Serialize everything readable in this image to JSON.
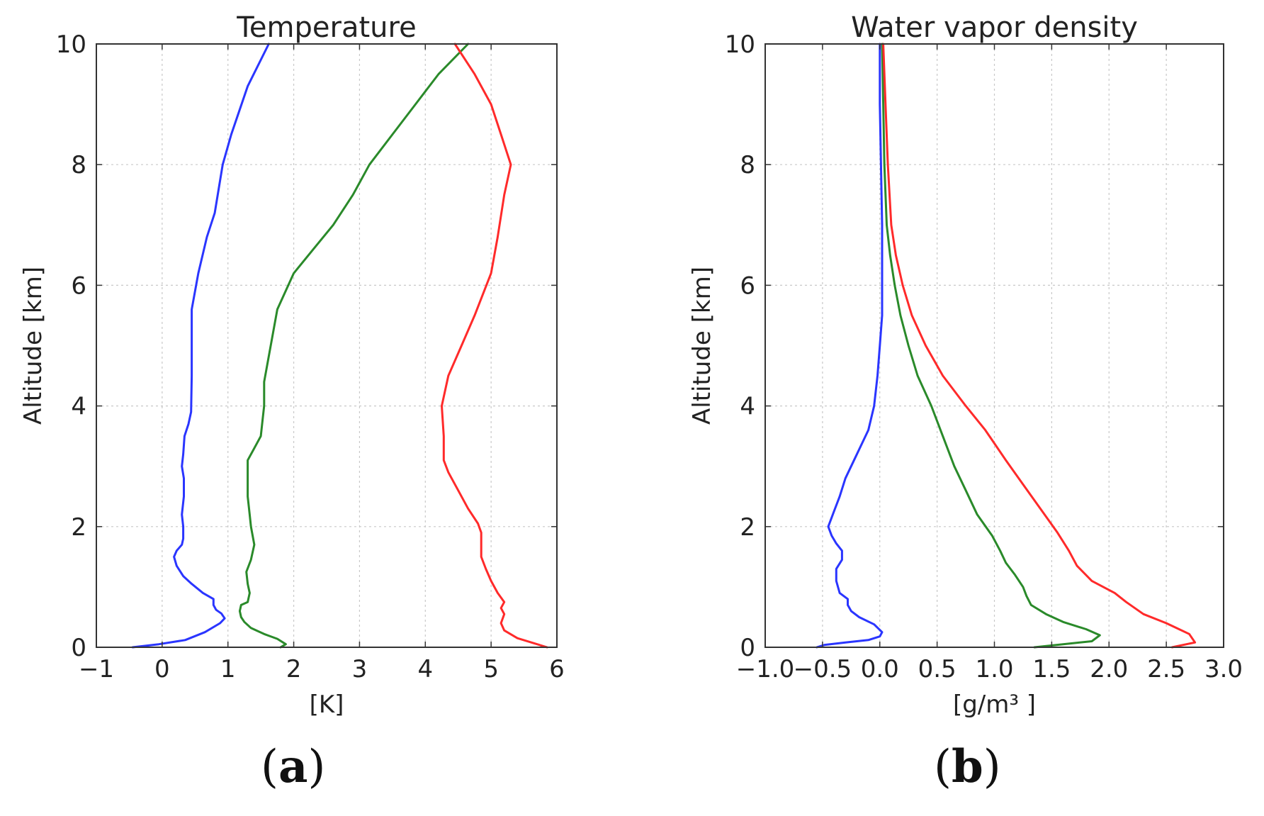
{
  "chart_data": [
    {
      "type": "line",
      "panel_label": "a",
      "title": "Temperature",
      "xlabel": "[K]",
      "ylabel": "Altitude [km]",
      "xlim": [
        -1,
        6
      ],
      "ylim": [
        0,
        10
      ],
      "xticks": [
        -1,
        0,
        1,
        2,
        3,
        4,
        5,
        6
      ],
      "xtick_labels": [
        "−1",
        "0",
        "1",
        "2",
        "3",
        "4",
        "5",
        "6"
      ],
      "yticks": [
        0,
        2,
        4,
        6,
        8,
        10
      ],
      "ytick_labels": [
        "0",
        "2",
        "4",
        "6",
        "8",
        "10"
      ],
      "grid": true,
      "series": [
        {
          "name": "blue",
          "color": "#2a35ff",
          "points": [
            [
              -0.45,
              0
            ],
            [
              -0.05,
              0.05
            ],
            [
              0.35,
              0.12
            ],
            [
              0.65,
              0.25
            ],
            [
              0.88,
              0.4
            ],
            [
              0.95,
              0.48
            ],
            [
              0.9,
              0.56
            ],
            [
              0.82,
              0.62
            ],
            [
              0.78,
              0.7
            ],
            [
              0.78,
              0.8
            ],
            [
              0.62,
              0.9
            ],
            [
              0.45,
              1.05
            ],
            [
              0.32,
              1.18
            ],
            [
              0.22,
              1.35
            ],
            [
              0.18,
              1.5
            ],
            [
              0.22,
              1.6
            ],
            [
              0.3,
              1.7
            ],
            [
              0.32,
              1.8
            ],
            [
              0.32,
              2.0
            ],
            [
              0.3,
              2.2
            ],
            [
              0.33,
              2.5
            ],
            [
              0.33,
              2.8
            ],
            [
              0.3,
              3.0
            ],
            [
              0.32,
              3.2
            ],
            [
              0.34,
              3.5
            ],
            [
              0.4,
              3.7
            ],
            [
              0.44,
              3.9
            ],
            [
              0.45,
              4.5
            ],
            [
              0.45,
              5.6
            ],
            [
              0.55,
              6.2
            ],
            [
              0.68,
              6.8
            ],
            [
              0.8,
              7.2
            ],
            [
              0.86,
              7.6
            ],
            [
              0.92,
              8.0
            ],
            [
              1.05,
              8.5
            ],
            [
              1.3,
              9.3
            ],
            [
              1.62,
              10.0
            ]
          ]
        },
        {
          "name": "green",
          "color": "#2a8a2a",
          "points": [
            [
              1.8,
              0
            ],
            [
              1.88,
              0.05
            ],
            [
              1.75,
              0.14
            ],
            [
              1.55,
              0.22
            ],
            [
              1.35,
              0.32
            ],
            [
              1.25,
              0.42
            ],
            [
              1.2,
              0.5
            ],
            [
              1.18,
              0.6
            ],
            [
              1.2,
              0.7
            ],
            [
              1.3,
              0.75
            ],
            [
              1.33,
              0.9
            ],
            [
              1.3,
              1.05
            ],
            [
              1.28,
              1.25
            ],
            [
              1.35,
              1.45
            ],
            [
              1.4,
              1.7
            ],
            [
              1.35,
              2.0
            ],
            [
              1.33,
              2.2
            ],
            [
              1.3,
              2.5
            ],
            [
              1.3,
              2.8
            ],
            [
              1.3,
              3.1
            ],
            [
              1.4,
              3.3
            ],
            [
              1.5,
              3.5
            ],
            [
              1.53,
              3.8
            ],
            [
              1.55,
              4.0
            ],
            [
              1.55,
              4.4
            ],
            [
              1.65,
              5.0
            ],
            [
              1.75,
              5.6
            ],
            [
              2.0,
              6.2
            ],
            [
              2.3,
              6.6
            ],
            [
              2.6,
              7.0
            ],
            [
              2.9,
              7.5
            ],
            [
              3.15,
              8.0
            ],
            [
              3.5,
              8.5
            ],
            [
              3.85,
              9.0
            ],
            [
              4.2,
              9.5
            ],
            [
              4.65,
              10.0
            ]
          ]
        },
        {
          "name": "red",
          "color": "#ff2a2a",
          "points": [
            [
              5.85,
              0
            ],
            [
              5.7,
              0.05
            ],
            [
              5.4,
              0.15
            ],
            [
              5.2,
              0.28
            ],
            [
              5.15,
              0.4
            ],
            [
              5.2,
              0.55
            ],
            [
              5.15,
              0.65
            ],
            [
              5.2,
              0.75
            ],
            [
              5.1,
              0.9
            ],
            [
              5.0,
              1.1
            ],
            [
              4.92,
              1.3
            ],
            [
              4.85,
              1.5
            ],
            [
              4.85,
              1.9
            ],
            [
              4.8,
              2.05
            ],
            [
              4.65,
              2.3
            ],
            [
              4.5,
              2.6
            ],
            [
              4.35,
              2.9
            ],
            [
              4.28,
              3.1
            ],
            [
              4.28,
              3.5
            ],
            [
              4.25,
              4.0
            ],
            [
              4.35,
              4.5
            ],
            [
              4.55,
              5.0
            ],
            [
              4.75,
              5.5
            ],
            [
              5.0,
              6.2
            ],
            [
              5.1,
              6.8
            ],
            [
              5.2,
              7.5
            ],
            [
              5.3,
              8.0
            ],
            [
              5.15,
              8.5
            ],
            [
              5.0,
              9.0
            ],
            [
              4.75,
              9.5
            ],
            [
              4.45,
              10.0
            ]
          ]
        }
      ]
    },
    {
      "type": "line",
      "panel_label": "b",
      "title": "Water vapor density",
      "xlabel": "[g/m³ ]",
      "ylabel": "Altitude [km]",
      "xlim": [
        -1.0,
        3.0
      ],
      "ylim": [
        0,
        10
      ],
      "xticks": [
        -1.0,
        -0.5,
        0.0,
        0.5,
        1.0,
        1.5,
        2.0,
        2.5,
        3.0
      ],
      "xtick_labels": [
        "−1.0",
        "−0.5",
        "0.0",
        "0.5",
        "1.0",
        "1.5",
        "2.0",
        "2.5",
        "3.0"
      ],
      "yticks": [
        0,
        2,
        4,
        6,
        8,
        10
      ],
      "ytick_labels": [
        "0",
        "2",
        "4",
        "6",
        "8",
        "10"
      ],
      "grid": true,
      "series": [
        {
          "name": "blue",
          "color": "#2a35ff",
          "points": [
            [
              -0.55,
              0
            ],
            [
              -0.48,
              0.04
            ],
            [
              -0.3,
              0.08
            ],
            [
              -0.1,
              0.12
            ],
            [
              0.0,
              0.18
            ],
            [
              0.02,
              0.25
            ],
            [
              -0.05,
              0.38
            ],
            [
              -0.18,
              0.5
            ],
            [
              -0.25,
              0.6
            ],
            [
              -0.28,
              0.7
            ],
            [
              -0.28,
              0.8
            ],
            [
              -0.35,
              0.9
            ],
            [
              -0.38,
              1.1
            ],
            [
              -0.38,
              1.3
            ],
            [
              -0.33,
              1.45
            ],
            [
              -0.33,
              1.6
            ],
            [
              -0.38,
              1.72
            ],
            [
              -0.42,
              1.85
            ],
            [
              -0.45,
              2.0
            ],
            [
              -0.4,
              2.25
            ],
            [
              -0.35,
              2.5
            ],
            [
              -0.3,
              2.8
            ],
            [
              -0.2,
              3.2
            ],
            [
              -0.1,
              3.6
            ],
            [
              -0.05,
              4.0
            ],
            [
              -0.02,
              4.5
            ],
            [
              0.0,
              5.0
            ],
            [
              0.02,
              5.5
            ],
            [
              0.02,
              6.0
            ],
            [
              0.02,
              7.0
            ],
            [
              0.01,
              8.0
            ],
            [
              0.0,
              9.0
            ],
            [
              0.0,
              10.0
            ]
          ]
        },
        {
          "name": "green",
          "color": "#2a8a2a",
          "points": [
            [
              1.35,
              0
            ],
            [
              1.6,
              0.05
            ],
            [
              1.85,
              0.1
            ],
            [
              1.92,
              0.2
            ],
            [
              1.8,
              0.3
            ],
            [
              1.6,
              0.42
            ],
            [
              1.45,
              0.55
            ],
            [
              1.32,
              0.7
            ],
            [
              1.28,
              0.85
            ],
            [
              1.25,
              1.0
            ],
            [
              1.18,
              1.2
            ],
            [
              1.1,
              1.4
            ],
            [
              1.05,
              1.6
            ],
            [
              0.98,
              1.85
            ],
            [
              0.85,
              2.2
            ],
            [
              0.75,
              2.6
            ],
            [
              0.65,
              3.0
            ],
            [
              0.55,
              3.5
            ],
            [
              0.45,
              4.0
            ],
            [
              0.33,
              4.5
            ],
            [
              0.25,
              5.0
            ],
            [
              0.18,
              5.5
            ],
            [
              0.13,
              6.0
            ],
            [
              0.09,
              6.5
            ],
            [
              0.06,
              7.0
            ],
            [
              0.04,
              8.0
            ],
            [
              0.03,
              9.0
            ],
            [
              0.02,
              10.0
            ]
          ]
        },
        {
          "name": "red",
          "color": "#ff2a2a",
          "points": [
            [
              2.55,
              0
            ],
            [
              2.75,
              0.08
            ],
            [
              2.7,
              0.22
            ],
            [
              2.5,
              0.4
            ],
            [
              2.3,
              0.55
            ],
            [
              2.15,
              0.75
            ],
            [
              2.05,
              0.9
            ],
            [
              1.85,
              1.1
            ],
            [
              1.72,
              1.35
            ],
            [
              1.65,
              1.6
            ],
            [
              1.55,
              1.9
            ],
            [
              1.4,
              2.3
            ],
            [
              1.25,
              2.7
            ],
            [
              1.1,
              3.1
            ],
            [
              0.92,
              3.6
            ],
            [
              0.75,
              4.0
            ],
            [
              0.55,
              4.5
            ],
            [
              0.4,
              5.0
            ],
            [
              0.28,
              5.5
            ],
            [
              0.2,
              6.0
            ],
            [
              0.14,
              6.5
            ],
            [
              0.1,
              7.0
            ],
            [
              0.07,
              8.0
            ],
            [
              0.05,
              9.0
            ],
            [
              0.03,
              10.0
            ]
          ]
        }
      ]
    }
  ]
}
